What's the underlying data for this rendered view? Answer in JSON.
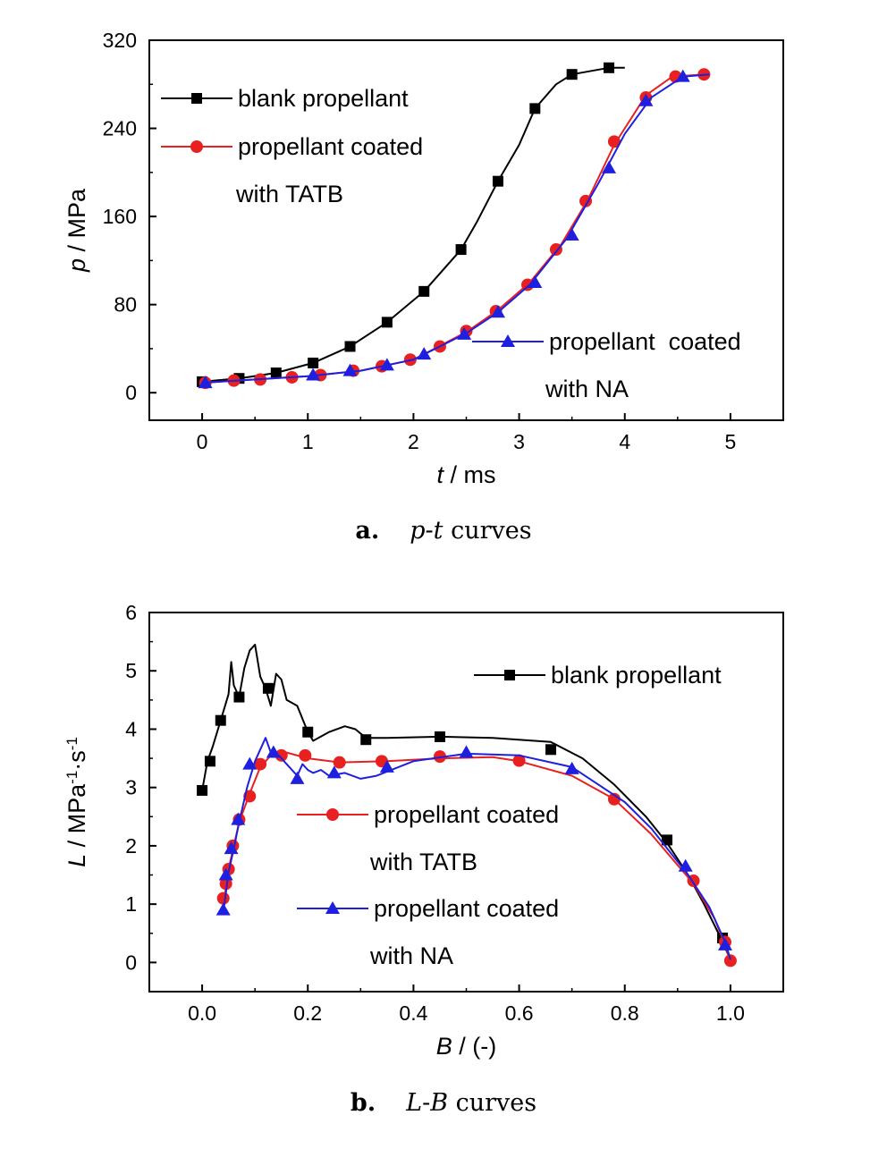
{
  "figure": {
    "caption_a": {
      "letter": "a.",
      "var": "p-t",
      "rest": " curves"
    },
    "caption_b": {
      "letter": "b.",
      "var1": "L",
      "dash": "-",
      "var2": "B",
      "rest": " curves"
    }
  },
  "colors": {
    "blank": "#000000",
    "tatb": "#e8201f",
    "na": "#1f1fe0"
  },
  "chart_data": [
    {
      "type": "line",
      "xlabel": {
        "var": "t",
        "unit": " / ms"
      },
      "ylabel": {
        "var": "p",
        "unit": " / MPa"
      },
      "xlim": [
        -0.5,
        5.5
      ],
      "ylim": [
        -25,
        320
      ],
      "xticks": [
        0,
        1,
        2,
        3,
        4,
        5
      ],
      "yticks": [
        0,
        80,
        160,
        240,
        320
      ],
      "legend": [
        {
          "series": "blank",
          "lines": [
            "blank propellant"
          ]
        },
        {
          "series": "tatb",
          "lines": [
            "propellant coated",
            "with TATB"
          ]
        },
        {
          "series": "na",
          "lines": [
            "propellant  coated",
            "with NA"
          ]
        }
      ],
      "series": [
        {
          "key": "blank",
          "marker": "square",
          "curve": [
            [
              0,
              10
            ],
            [
              0.35,
              13
            ],
            [
              0.7,
              18
            ],
            [
              1.05,
              27
            ],
            [
              1.4,
              42
            ],
            [
              1.75,
              64
            ],
            [
              2.1,
              92
            ],
            [
              2.45,
              130
            ],
            [
              2.6,
              155
            ],
            [
              2.8,
              192
            ],
            [
              3,
              225
            ],
            [
              3.15,
              258
            ],
            [
              3.35,
              280
            ],
            [
              3.5,
              289
            ],
            [
              3.85,
              295
            ],
            [
              4,
              295
            ]
          ],
          "markers": [
            [
              0,
              10
            ],
            [
              0.35,
              13
            ],
            [
              0.7,
              18
            ],
            [
              1.05,
              27
            ],
            [
              1.4,
              42
            ],
            [
              1.75,
              64
            ],
            [
              2.1,
              92
            ],
            [
              2.45,
              130
            ],
            [
              2.8,
              192
            ],
            [
              3.15,
              258
            ],
            [
              3.5,
              289
            ],
            [
              3.85,
              295
            ]
          ]
        },
        {
          "key": "tatb",
          "marker": "circle",
          "curve": [
            [
              0,
              9
            ],
            [
              0.5,
              12
            ],
            [
              1,
              15
            ],
            [
              1.5,
              20
            ],
            [
              2,
              30
            ],
            [
              2.5,
              55
            ],
            [
              2.8,
              75
            ],
            [
              3.1,
              100
            ],
            [
              3.4,
              135
            ],
            [
              3.65,
              175
            ],
            [
              3.9,
              225
            ],
            [
              4.2,
              270
            ],
            [
              4.45,
              287
            ],
            [
              4.75,
              289
            ],
            [
              4.8,
              289
            ]
          ],
          "markers": [
            [
              0.03,
              9
            ],
            [
              0.3,
              11
            ],
            [
              0.55,
              12
            ],
            [
              0.85,
              14
            ],
            [
              1.12,
              16
            ],
            [
              1.43,
              20
            ],
            [
              1.7,
              24
            ],
            [
              1.97,
              30
            ],
            [
              2.25,
              42
            ],
            [
              2.5,
              56
            ],
            [
              2.78,
              74
            ],
            [
              3.08,
              98
            ],
            [
              3.35,
              130
            ],
            [
              3.63,
              174
            ],
            [
              3.9,
              228
            ],
            [
              4.2,
              268
            ],
            [
              4.48,
              287
            ],
            [
              4.75,
              289
            ]
          ]
        },
        {
          "key": "na",
          "marker": "triangle",
          "curve": [
            [
              0,
              9
            ],
            [
              0.5,
              12
            ],
            [
              1,
              15
            ],
            [
              1.5,
              20
            ],
            [
              2,
              30
            ],
            [
              2.5,
              54
            ],
            [
              2.8,
              73
            ],
            [
              3.1,
              98
            ],
            [
              3.45,
              140
            ],
            [
              3.75,
              190
            ],
            [
              4,
              235
            ],
            [
              4.25,
              268
            ],
            [
              4.55,
              287
            ],
            [
              4.8,
              289
            ]
          ],
          "markers": [
            [
              0.03,
              9
            ],
            [
              1.05,
              16
            ],
            [
              1.4,
              20
            ],
            [
              1.75,
              25
            ],
            [
              2.1,
              35
            ],
            [
              2.48,
              53
            ],
            [
              2.8,
              73
            ],
            [
              3.15,
              100
            ],
            [
              3.5,
              143
            ],
            [
              3.85,
              204
            ],
            [
              4.2,
              265
            ],
            [
              4.55,
              287
            ]
          ]
        }
      ]
    },
    {
      "type": "line",
      "xlabel": {
        "var": "B",
        "unit": " / (-)"
      },
      "ylabel": {
        "var": "L",
        "unit": " / MPa",
        "sup1": "-1",
        "mid": "·s",
        "sup2": "-1"
      },
      "xlim": [
        -0.1,
        1.1
      ],
      "ylim": [
        -0.5,
        6
      ],
      "xticks": [
        "0.0",
        "0.2",
        "0.4",
        "0.6",
        "0.8",
        "1.0"
      ],
      "yticks": [
        0,
        1,
        2,
        3,
        4,
        5,
        6
      ],
      "legend": [
        {
          "series": "blank",
          "lines": [
            "blank propellant"
          ]
        },
        {
          "series": "tatb",
          "lines": [
            "propellant coated",
            "with TATB"
          ]
        },
        {
          "series": "na",
          "lines": [
            "propellant coated",
            "with NA"
          ]
        }
      ],
      "series": [
        {
          "key": "blank",
          "marker": "square",
          "curve": [
            [
              0,
              2.95
            ],
            [
              0.01,
              3.45
            ],
            [
              0.02,
              3.7
            ],
            [
              0.035,
              4.15
            ],
            [
              0.045,
              4.45
            ],
            [
              0.05,
              4.6
            ],
            [
              0.055,
              5.15
            ],
            [
              0.06,
              4.75
            ],
            [
              0.07,
              4.55
            ],
            [
              0.08,
              5.05
            ],
            [
              0.09,
              5.35
            ],
            [
              0.1,
              5.45
            ],
            [
              0.11,
              4.9
            ],
            [
              0.12,
              4.7
            ],
            [
              0.13,
              4.4
            ],
            [
              0.14,
              4.95
            ],
            [
              0.15,
              4.85
            ],
            [
              0.16,
              4.5
            ],
            [
              0.18,
              4.4
            ],
            [
              0.2,
              3.95
            ],
            [
              0.21,
              3.8
            ],
            [
              0.24,
              3.95
            ],
            [
              0.27,
              4.05
            ],
            [
              0.29,
              4.0
            ],
            [
              0.31,
              3.85
            ],
            [
              0.35,
              3.85
            ],
            [
              0.45,
              3.87
            ],
            [
              0.55,
              3.85
            ],
            [
              0.66,
              3.78
            ],
            [
              0.72,
              3.5
            ],
            [
              0.78,
              3.05
            ],
            [
              0.84,
              2.5
            ],
            [
              0.88,
              2.05
            ],
            [
              0.92,
              1.5
            ],
            [
              0.95,
              1.0
            ],
            [
              0.98,
              0.45
            ],
            [
              1.0,
              0.05
            ]
          ],
          "markers": [
            [
              0,
              2.95
            ],
            [
              0.015,
              3.45
            ],
            [
              0.035,
              4.15
            ],
            [
              0.07,
              4.55
            ],
            [
              0.125,
              4.7
            ],
            [
              0.2,
              3.95
            ],
            [
              0.31,
              3.82
            ],
            [
              0.45,
              3.87
            ],
            [
              0.66,
              3.65
            ],
            [
              0.88,
              2.1
            ],
            [
              0.985,
              0.42
            ]
          ]
        },
        {
          "key": "tatb",
          "marker": "circle",
          "curve": [
            [
              0.04,
              0.9
            ],
            [
              0.045,
              1.3
            ],
            [
              0.05,
              1.6
            ],
            [
              0.06,
              2.0
            ],
            [
              0.07,
              2.4
            ],
            [
              0.09,
              2.9
            ],
            [
              0.11,
              3.35
            ],
            [
              0.13,
              3.55
            ],
            [
              0.16,
              3.6
            ],
            [
              0.2,
              3.5
            ],
            [
              0.26,
              3.43
            ],
            [
              0.35,
              3.45
            ],
            [
              0.45,
              3.5
            ],
            [
              0.55,
              3.52
            ],
            [
              0.6,
              3.45
            ],
            [
              0.7,
              3.2
            ],
            [
              0.78,
              2.8
            ],
            [
              0.85,
              2.2
            ],
            [
              0.93,
              1.35
            ],
            [
              0.97,
              0.75
            ],
            [
              0.99,
              0.3
            ],
            [
              1.0,
              0.02
            ]
          ],
          "markers": [
            [
              0.04,
              1.1
            ],
            [
              0.045,
              1.35
            ],
            [
              0.05,
              1.6
            ],
            [
              0.058,
              2.0
            ],
            [
              0.07,
              2.45
            ],
            [
              0.09,
              2.85
            ],
            [
              0.11,
              3.4
            ],
            [
              0.15,
              3.55
            ],
            [
              0.195,
              3.55
            ],
            [
              0.26,
              3.43
            ],
            [
              0.34,
              3.45
            ],
            [
              0.45,
              3.53
            ],
            [
              0.6,
              3.46
            ],
            [
              0.78,
              2.8
            ],
            [
              0.93,
              1.4
            ],
            [
              0.99,
              0.35
            ],
            [
              1.0,
              0.03
            ]
          ]
        },
        {
          "key": "na",
          "marker": "triangle",
          "curve": [
            [
              0.04,
              0.85
            ],
            [
              0.045,
              1.2
            ],
            [
              0.05,
              1.55
            ],
            [
              0.06,
              1.95
            ],
            [
              0.07,
              2.4
            ],
            [
              0.085,
              3.0
            ],
            [
              0.1,
              3.45
            ],
            [
              0.12,
              3.85
            ],
            [
              0.13,
              3.6
            ],
            [
              0.145,
              3.55
            ],
            [
              0.16,
              3.4
            ],
            [
              0.18,
              3.2
            ],
            [
              0.19,
              3.4
            ],
            [
              0.2,
              3.3
            ],
            [
              0.21,
              3.25
            ],
            [
              0.225,
              3.3
            ],
            [
              0.24,
              3.2
            ],
            [
              0.27,
              3.25
            ],
            [
              0.3,
              3.15
            ],
            [
              0.33,
              3.2
            ],
            [
              0.4,
              3.45
            ],
            [
              0.5,
              3.58
            ],
            [
              0.6,
              3.55
            ],
            [
              0.7,
              3.35
            ],
            [
              0.8,
              2.75
            ],
            [
              0.85,
              2.3
            ],
            [
              0.92,
              1.5
            ],
            [
              0.96,
              0.95
            ],
            [
              0.99,
              0.35
            ],
            [
              1.0,
              0.05
            ]
          ],
          "markers": [
            [
              0.04,
              0.9
            ],
            [
              0.045,
              1.5
            ],
            [
              0.055,
              1.95
            ],
            [
              0.068,
              2.45
            ],
            [
              0.09,
              3.4
            ],
            [
              0.135,
              3.6
            ],
            [
              0.18,
              3.15
            ],
            [
              0.25,
              3.25
            ],
            [
              0.35,
              3.35
            ],
            [
              0.5,
              3.6
            ],
            [
              0.7,
              3.32
            ],
            [
              0.915,
              1.65
            ],
            [
              0.99,
              0.3
            ]
          ]
        }
      ]
    }
  ]
}
